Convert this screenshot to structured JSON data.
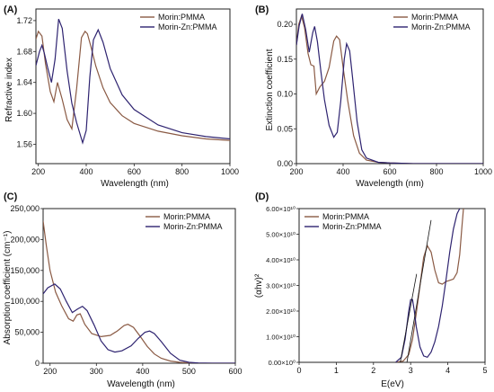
{
  "colors": {
    "morin": "#8a5a44",
    "zn": "#2e2370",
    "fit": "#111111"
  },
  "chart_data": [
    {
      "panel": "(A)",
      "type": "line",
      "xlabel": "Wavelength (nm)",
      "ylabel": "Refractive index",
      "xlim": [
        190,
        1000
      ],
      "ylim": [
        1.535,
        1.735
      ],
      "xticks": [
        200,
        400,
        600,
        800,
        1000
      ],
      "xtick_labels": [
        "200",
        "400",
        "600",
        "800",
        "1000"
      ],
      "yticks": [
        1.56,
        1.6,
        1.64,
        1.68,
        1.72
      ],
      "ytick_labels": [
        "1.56",
        "1.60",
        "1.64",
        "1.68",
        "1.72"
      ],
      "legend": "top-right",
      "series": [
        {
          "name": "Morin:PMMA",
          "key": "morin",
          "x": [
            190,
            200,
            215,
            230,
            250,
            265,
            280,
            300,
            320,
            340,
            360,
            380,
            395,
            405,
            420,
            440,
            470,
            500,
            550,
            600,
            700,
            800,
            900,
            1000
          ],
          "y": [
            1.696,
            1.706,
            1.7,
            1.664,
            1.628,
            1.615,
            1.64,
            1.618,
            1.592,
            1.58,
            1.632,
            1.698,
            1.706,
            1.703,
            1.686,
            1.661,
            1.633,
            1.614,
            1.597,
            1.587,
            1.577,
            1.571,
            1.567,
            1.565
          ]
        },
        {
          "name": "Morin-Zn:PMMA",
          "key": "zn",
          "x": [
            190,
            205,
            215,
            225,
            240,
            255,
            270,
            285,
            300,
            320,
            340,
            360,
            385,
            400,
            415,
            430,
            450,
            470,
            500,
            550,
            600,
            700,
            800,
            900,
            1000
          ],
          "y": [
            1.662,
            1.68,
            1.688,
            1.678,
            1.658,
            1.64,
            1.67,
            1.722,
            1.71,
            1.655,
            1.613,
            1.588,
            1.562,
            1.578,
            1.647,
            1.695,
            1.708,
            1.692,
            1.658,
            1.624,
            1.605,
            1.585,
            1.575,
            1.57,
            1.567
          ]
        }
      ]
    },
    {
      "panel": "(B)",
      "type": "line",
      "xlabel": "Wavelength (nm)",
      "ylabel": "Extinction coefficient",
      "xlim": [
        200,
        1000
      ],
      "ylim": [
        0,
        0.222
      ],
      "xticks": [
        200,
        400,
        600,
        800,
        1000
      ],
      "xtick_labels": [
        "200",
        "400",
        "600",
        "800",
        "1000"
      ],
      "yticks": [
        0.0,
        0.05,
        0.1,
        0.15,
        0.2
      ],
      "ytick_labels": [
        "0.00",
        "0.05",
        "0.10",
        "0.15",
        "0.20"
      ],
      "legend": "top-right",
      "series": [
        {
          "name": "Morin:PMMA",
          "key": "morin",
          "x": [
            200,
            210,
            222,
            235,
            250,
            262,
            275,
            285,
            300,
            320,
            340,
            360,
            372,
            385,
            400,
            420,
            445,
            470,
            500,
            550,
            600,
            700,
            800,
            1000
          ],
          "y": [
            0.17,
            0.2,
            0.212,
            0.195,
            0.158,
            0.142,
            0.14,
            0.1,
            0.11,
            0.118,
            0.138,
            0.176,
            0.183,
            0.178,
            0.138,
            0.09,
            0.04,
            0.015,
            0.005,
            0.002,
            0.001,
            0.0,
            0.0,
            0.0
          ]
        },
        {
          "name": "Morin-Zn:PMMA",
          "key": "zn",
          "x": [
            200,
            212,
            225,
            240,
            255,
            270,
            278,
            290,
            305,
            320,
            340,
            360,
            375,
            390,
            405,
            415,
            428,
            440,
            460,
            480,
            500,
            550,
            600,
            700,
            800,
            1000
          ],
          "y": [
            0.17,
            0.198,
            0.215,
            0.192,
            0.16,
            0.188,
            0.197,
            0.175,
            0.132,
            0.092,
            0.055,
            0.038,
            0.045,
            0.09,
            0.15,
            0.172,
            0.162,
            0.125,
            0.06,
            0.02,
            0.008,
            0.002,
            0.001,
            0.0,
            0.0,
            0.0
          ]
        }
      ]
    },
    {
      "panel": "(C)",
      "type": "line",
      "xlabel": "Wavelength (nm)",
      "ylabel": "Absorption coefficient (cm⁻¹)",
      "xlim": [
        185,
        600
      ],
      "ylim": [
        0,
        250000
      ],
      "xticks": [
        200,
        300,
        400,
        500,
        600
      ],
      "xtick_labels": [
        "200",
        "300",
        "400",
        "500",
        "600"
      ],
      "yticks": [
        0,
        50000,
        100000,
        150000,
        200000,
        250000
      ],
      "ytick_labels": [
        "0",
        "50,000",
        "100,000",
        "150,000",
        "200,000",
        "250,000"
      ],
      "legend": "top-right",
      "series": [
        {
          "name": "Morin:PMMA",
          "key": "morin",
          "x": [
            185,
            192,
            200,
            212,
            225,
            240,
            250,
            258,
            265,
            275,
            290,
            310,
            330,
            345,
            360,
            368,
            380,
            395,
            410,
            425,
            440,
            460,
            480,
            500,
            520,
            550,
            600
          ],
          "y": [
            230000,
            190000,
            150000,
            115000,
            93000,
            72000,
            68000,
            78000,
            80000,
            63000,
            48000,
            43000,
            45000,
            52000,
            61000,
            63000,
            58000,
            43000,
            27000,
            15000,
            8000,
            3500,
            1500,
            600,
            200,
            0,
            0
          ]
        },
        {
          "name": "Morin-Zn:PMMA",
          "key": "zn",
          "x": [
            185,
            195,
            210,
            222,
            235,
            248,
            260,
            270,
            280,
            295,
            310,
            325,
            340,
            355,
            375,
            390,
            405,
            415,
            425,
            440,
            460,
            480,
            500,
            520,
            550,
            600
          ],
          "y": [
            112000,
            122000,
            128000,
            120000,
            100000,
            82000,
            88000,
            92000,
            85000,
            62000,
            36000,
            22000,
            18000,
            20000,
            28000,
            40000,
            50000,
            52000,
            48000,
            35000,
            16000,
            5000,
            1500,
            400,
            0,
            0
          ]
        }
      ]
    },
    {
      "panel": "(D)",
      "type": "line",
      "xlabel": "E(eV)",
      "ylabel": "(αhv)²",
      "xlim": [
        0,
        5
      ],
      "ylim": [
        0,
        60000000000.0
      ],
      "xticks": [
        0,
        1,
        2,
        3,
        4,
        5
      ],
      "xtick_labels": [
        "0",
        "1",
        "2",
        "3",
        "4",
        "5"
      ],
      "yticks": [
        0,
        10000000000.0,
        20000000000.0,
        30000000000.0,
        40000000000.0,
        50000000000.0,
        60000000000.0
      ],
      "ytick_labels": [
        "0.00×10⁰",
        "1.00×10¹⁰",
        "2.00×10¹⁰",
        "3.00×10¹⁰",
        "4.00×10¹⁰",
        "5.00×10¹⁰",
        "6.00×10¹⁰"
      ],
      "legend": "top-left",
      "series": [
        {
          "name": "Morin:PMMA",
          "key": "morin",
          "x": [
            2.6,
            2.8,
            2.95,
            3.05,
            3.15,
            3.25,
            3.35,
            3.45,
            3.55,
            3.65,
            3.75,
            3.85,
            3.95,
            4.05,
            4.15,
            4.25,
            4.32,
            4.38,
            4.42
          ],
          "y": [
            0,
            500000000.0,
            3000000000.0,
            9000000000.0,
            19000000000.0,
            30000000000.0,
            41000000000.0,
            45500000000.0,
            43000000000.0,
            36000000000.0,
            31000000000.0,
            30500000000.0,
            31500000000.0,
            32000000000.0,
            32500000000.0,
            35000000000.0,
            42000000000.0,
            53000000000.0,
            60000000000.0
          ]
        },
        {
          "name": "Morin-Zn:PMMA",
          "key": "zn",
          "x": [
            2.6,
            2.75,
            2.85,
            2.95,
            3.0,
            3.05,
            3.1,
            3.15,
            3.25,
            3.35,
            3.45,
            3.55,
            3.65,
            3.75,
            3.85,
            3.95,
            4.05,
            4.15,
            4.25,
            4.32
          ],
          "y": [
            0,
            2000000000.0,
            9000000000.0,
            20000000000.0,
            24500000000.0,
            24500000000.0,
            20000000000.0,
            14000000000.0,
            6000000000.0,
            2500000000.0,
            2000000000.0,
            4000000000.0,
            8000000000.0,
            14000000000.0,
            22000000000.0,
            32000000000.0,
            43000000000.0,
            52000000000.0,
            58000000000.0,
            60000000000.0
          ]
        }
      ],
      "fit_lines": [
        {
          "x": [
            2.72,
            3.16
          ],
          "y": [
            0,
            34500000000.0
          ]
        },
        {
          "x": [
            2.9,
            3.55
          ],
          "y": [
            0,
            55500000000.0
          ]
        }
      ]
    }
  ]
}
